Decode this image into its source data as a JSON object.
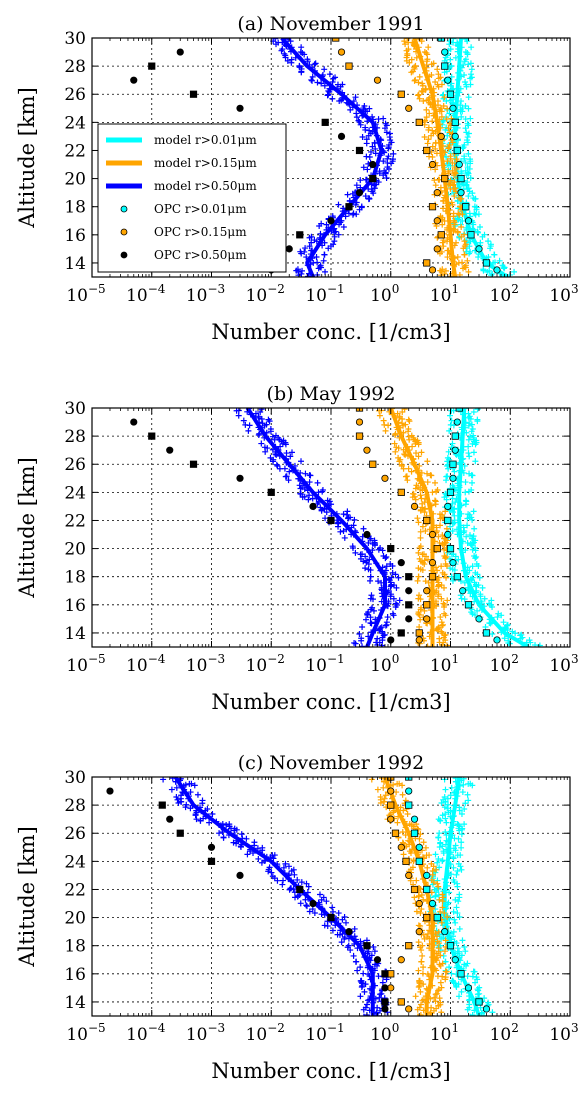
{
  "figure": {
    "xlabel": "Number conc. [1/cm3]",
    "ylabel": "Altitude [km]"
  },
  "legend": {
    "placement": "left",
    "entries": [
      {
        "label": "model r>0.01μm",
        "kind": "line",
        "color": "#00ffff"
      },
      {
        "label": "model r>0.15μm",
        "kind": "line",
        "color": "#ffa500"
      },
      {
        "label": "model r>0.50μm",
        "kind": "line",
        "color": "#0000ff"
      },
      {
        "label": "OPC r>0.01μm",
        "kind": "marker",
        "color": "#00ffff"
      },
      {
        "label": "OPC r>0.15μm",
        "kind": "marker",
        "color": "#ffa500"
      },
      {
        "label": "OPC r>0.50μm",
        "kind": "marker",
        "color": "#000000"
      }
    ]
  },
  "chart_data": [
    {
      "type": "line",
      "title": "(a) November 1991",
      "xlabel": "Number conc. [1/cm3]",
      "ylabel": "Altitude [km]",
      "xscale": "log",
      "xlim": [
        1e-05,
        1000
      ],
      "ylim": [
        13,
        30
      ],
      "xticks": [
        "10^-5",
        "10^-4",
        "10^-3",
        "10^-2",
        "10^-1",
        "10^0",
        "10^1",
        "10^2",
        "10^3"
      ],
      "yticks": [
        14,
        16,
        18,
        20,
        22,
        24,
        26,
        28,
        30
      ],
      "grid": true,
      "legend": "left",
      "series": [
        {
          "name": "model r>0.01μm",
          "color": "#00ffff",
          "style": "line",
          "y": [
            13,
            14,
            16,
            18,
            20,
            22,
            24,
            26,
            28,
            30
          ],
          "x": [
            90,
            40,
            22,
            16,
            13,
            12,
            12,
            13,
            14,
            15
          ]
        },
        {
          "name": "model r>0.15μm",
          "color": "#ffa500",
          "style": "line",
          "y": [
            13,
            14,
            16,
            18,
            20,
            22,
            24,
            26,
            28,
            30
          ],
          "x": [
            12,
            11,
            10,
            9,
            8,
            7,
            6,
            5,
            3.5,
            2.5
          ]
        },
        {
          "name": "model r>0.50μm",
          "color": "#0000ff",
          "style": "line",
          "y": [
            13,
            14,
            16,
            18,
            20,
            22,
            24,
            26,
            28,
            30
          ],
          "x": [
            0.05,
            0.04,
            0.08,
            0.2,
            0.5,
            0.7,
            0.5,
            0.15,
            0.04,
            0.015
          ]
        },
        {
          "name": "OPC r>0.01μm",
          "color": "#00ffff",
          "style": "markers",
          "y": [
            13.5,
            14,
            15,
            16,
            17,
            18,
            19,
            20,
            21,
            22,
            23,
            24,
            25,
            26,
            27,
            28,
            29,
            30
          ],
          "x": [
            60,
            40,
            30,
            22,
            20,
            18,
            15,
            15,
            14,
            13,
            12,
            12,
            11,
            10,
            9,
            8,
            8,
            7
          ]
        },
        {
          "name": "OPC r>0.15μm",
          "color": "#ffa500",
          "style": "markers",
          "y": [
            13.5,
            14,
            15,
            16,
            17,
            18,
            19,
            20,
            21,
            22,
            23,
            24,
            25,
            26,
            27,
            28,
            29,
            30
          ],
          "x": [
            5,
            4,
            6,
            7,
            6,
            5,
            6,
            8,
            5,
            4,
            7,
            3,
            2,
            1.5,
            0.6,
            0.2,
            0.15,
            0.12
          ]
        },
        {
          "name": "OPC r>0.50μm",
          "color": "#000000",
          "style": "markers",
          "y": [
            13.5,
            14,
            15,
            16,
            17,
            18,
            19,
            20,
            21,
            22,
            23,
            24,
            25,
            26,
            27,
            28,
            29
          ],
          "x": [
            0.01,
            0.008,
            0.02,
            0.03,
            0.1,
            0.2,
            0.3,
            0.5,
            0.5,
            0.3,
            0.15,
            0.08,
            0.003,
            0.0005,
            5e-05,
            0.0001,
            0.0003
          ]
        }
      ]
    },
    {
      "type": "line",
      "title": "(b) May 1992",
      "xlabel": "Number conc. [1/cm3]",
      "ylabel": "Altitude [km]",
      "xscale": "log",
      "xlim": [
        1e-05,
        1000
      ],
      "ylim": [
        13,
        30
      ],
      "xticks": [
        "10^-5",
        "10^-4",
        "10^-3",
        "10^-2",
        "10^-1",
        "10^0",
        "10^1",
        "10^2",
        "10^3"
      ],
      "yticks": [
        14,
        16,
        18,
        20,
        22,
        24,
        26,
        28,
        30
      ],
      "grid": true,
      "series": [
        {
          "name": "model r>0.01μm",
          "color": "#00ffff",
          "style": "line",
          "y": [
            13,
            14,
            16,
            18,
            20,
            22,
            24,
            26,
            28,
            30
          ],
          "x": [
            200,
            80,
            30,
            18,
            15,
            14,
            14,
            15,
            16,
            17
          ]
        },
        {
          "name": "model r>0.15μm",
          "color": "#ffa500",
          "style": "line",
          "y": [
            13,
            14,
            16,
            18,
            20,
            22,
            24,
            26,
            28,
            30
          ],
          "x": [
            5,
            5,
            5,
            5,
            5,
            5,
            4,
            2.5,
            1.5,
            1
          ]
        },
        {
          "name": "model r>0.50μm",
          "color": "#0000ff",
          "style": "line",
          "y": [
            13,
            14,
            16,
            18,
            20,
            22,
            24,
            26,
            28,
            30
          ],
          "x": [
            0.4,
            0.5,
            0.8,
            0.8,
            0.4,
            0.15,
            0.05,
            0.02,
            0.008,
            0.004
          ]
        },
        {
          "name": "OPC r>0.01μm",
          "color": "#00ffff",
          "style": "markers",
          "y": [
            13.5,
            14,
            15,
            16,
            17,
            18,
            19,
            20,
            21,
            22,
            23,
            24,
            25,
            26,
            27,
            28,
            29,
            30
          ],
          "x": [
            60,
            40,
            30,
            20,
            16,
            13,
            11,
            10,
            9,
            9,
            9,
            10,
            11,
            11,
            12,
            12,
            13,
            14
          ]
        },
        {
          "name": "OPC r>0.15μm",
          "color": "#ffa500",
          "style": "markers",
          "y": [
            13.5,
            14,
            15,
            16,
            17,
            18,
            19,
            20,
            21,
            22,
            23,
            24,
            25,
            26,
            27,
            28,
            29,
            30
          ],
          "x": [
            3,
            3,
            4,
            4,
            4,
            5,
            5,
            6,
            5,
            4,
            2.5,
            1.5,
            0.8,
            0.5,
            0.4,
            0.3,
            0.3,
            0.3
          ]
        },
        {
          "name": "OPC r>0.50μm",
          "color": "#000000",
          "style": "markers",
          "y": [
            13.5,
            14,
            15,
            16,
            17,
            18,
            19,
            20,
            21,
            22,
            23,
            24,
            25,
            26,
            27,
            28,
            29
          ],
          "x": [
            1,
            1.5,
            2,
            2,
            2,
            2,
            1.5,
            1,
            0.4,
            0.1,
            0.05,
            0.01,
            0.003,
            0.0005,
            0.0002,
            0.0001,
            5e-05
          ]
        }
      ]
    },
    {
      "type": "line",
      "title": "(c) November 1992",
      "xlabel": "Number conc. [1/cm3]",
      "ylabel": "Altitude [km]",
      "xscale": "log",
      "xlim": [
        1e-05,
        1000
      ],
      "ylim": [
        13,
        30
      ],
      "xticks": [
        "10^-5",
        "10^-4",
        "10^-3",
        "10^-2",
        "10^-1",
        "10^0",
        "10^1",
        "10^2",
        "10^3"
      ],
      "yticks": [
        14,
        16,
        18,
        20,
        22,
        24,
        26,
        28,
        30
      ],
      "grid": true,
      "series": [
        {
          "name": "model r>0.01μm",
          "color": "#00ffff",
          "style": "line",
          "y": [
            13,
            14,
            16,
            18,
            20,
            22,
            24,
            26,
            28,
            30
          ],
          "x": [
            30,
            25,
            15,
            10,
            8,
            8,
            9,
            10,
            12,
            14
          ]
        },
        {
          "name": "model r>0.15μm",
          "color": "#ffa500",
          "style": "line",
          "y": [
            13,
            14,
            16,
            18,
            20,
            22,
            24,
            26,
            28,
            30
          ],
          "x": [
            4,
            4,
            5,
            5,
            5,
            4,
            3,
            2,
            1.2,
            0.8
          ]
        },
        {
          "name": "model r>0.50μm",
          "color": "#0000ff",
          "style": "line",
          "y": [
            13,
            14,
            16,
            18,
            20,
            22,
            24,
            26,
            28,
            30
          ],
          "x": [
            0.5,
            0.5,
            0.5,
            0.3,
            0.1,
            0.03,
            0.01,
            0.002,
            0.0005,
            0.00025
          ]
        },
        {
          "name": "OPC r>0.01μm",
          "color": "#00ffff",
          "style": "markers",
          "y": [
            13.5,
            14,
            15,
            16,
            17,
            18,
            19,
            20,
            21,
            22,
            23,
            24,
            25,
            26,
            27,
            28,
            29,
            30
          ],
          "x": [
            40,
            30,
            20,
            15,
            12,
            10,
            8,
            6,
            5,
            4,
            4,
            3,
            3,
            2.5,
            2.5,
            2,
            2,
            2
          ]
        },
        {
          "name": "OPC r>0.15μm",
          "color": "#ffa500",
          "style": "markers",
          "y": [
            13.5,
            14,
            15,
            16,
            17,
            18,
            19,
            20,
            21,
            22,
            23,
            24,
            25,
            26,
            27,
            28,
            29,
            30
          ],
          "x": [
            2,
            1.5,
            1,
            1,
            1.5,
            2,
            3,
            4,
            3,
            2.5,
            2,
            1.8,
            1.5,
            1.2,
            1,
            1,
            1,
            1
          ]
        },
        {
          "name": "OPC r>0.50μm",
          "color": "#000000",
          "style": "markers",
          "y": [
            13.5,
            14,
            15,
            16,
            17,
            18,
            19,
            20,
            21,
            22,
            23,
            24,
            25,
            26,
            27,
            28,
            29
          ],
          "x": [
            0.8,
            0.8,
            0.8,
            0.8,
            0.6,
            0.4,
            0.2,
            0.1,
            0.05,
            0.03,
            0.003,
            0.001,
            0.001,
            0.0003,
            0.0002,
            0.00015,
            2e-05
          ]
        }
      ]
    }
  ]
}
